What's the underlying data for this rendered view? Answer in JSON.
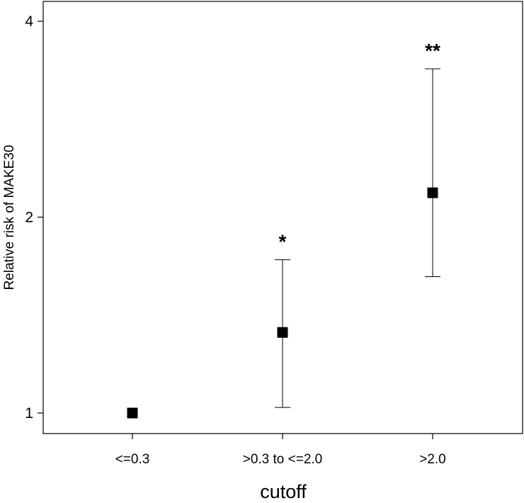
{
  "chart_data": {
    "type": "scatter",
    "subtype": "point-with-error-bars",
    "title": "",
    "xlabel": "cutoff",
    "ylabel": "Relative risk of MAKE30",
    "y_scale": "log",
    "ylim": [
      0.93,
      4.3
    ],
    "y_ticks": [
      {
        "value": 1,
        "label": "1"
      },
      {
        "value": 2,
        "label": "2"
      },
      {
        "value": 4,
        "label": "4"
      }
    ],
    "categories": [
      "<=0.3",
      ">0.3 to <=2.0",
      ">2.0"
    ],
    "values": [
      1.0,
      1.33,
      2.18
    ],
    "lower": [
      null,
      1.02,
      1.62
    ],
    "upper": [
      null,
      1.72,
      3.38
    ],
    "annotations": [
      "",
      "*",
      "**"
    ],
    "grid": false,
    "marker": "square",
    "colors": {
      "marker": "#000000",
      "axis": "#000000",
      "background": "#ffffff"
    }
  }
}
